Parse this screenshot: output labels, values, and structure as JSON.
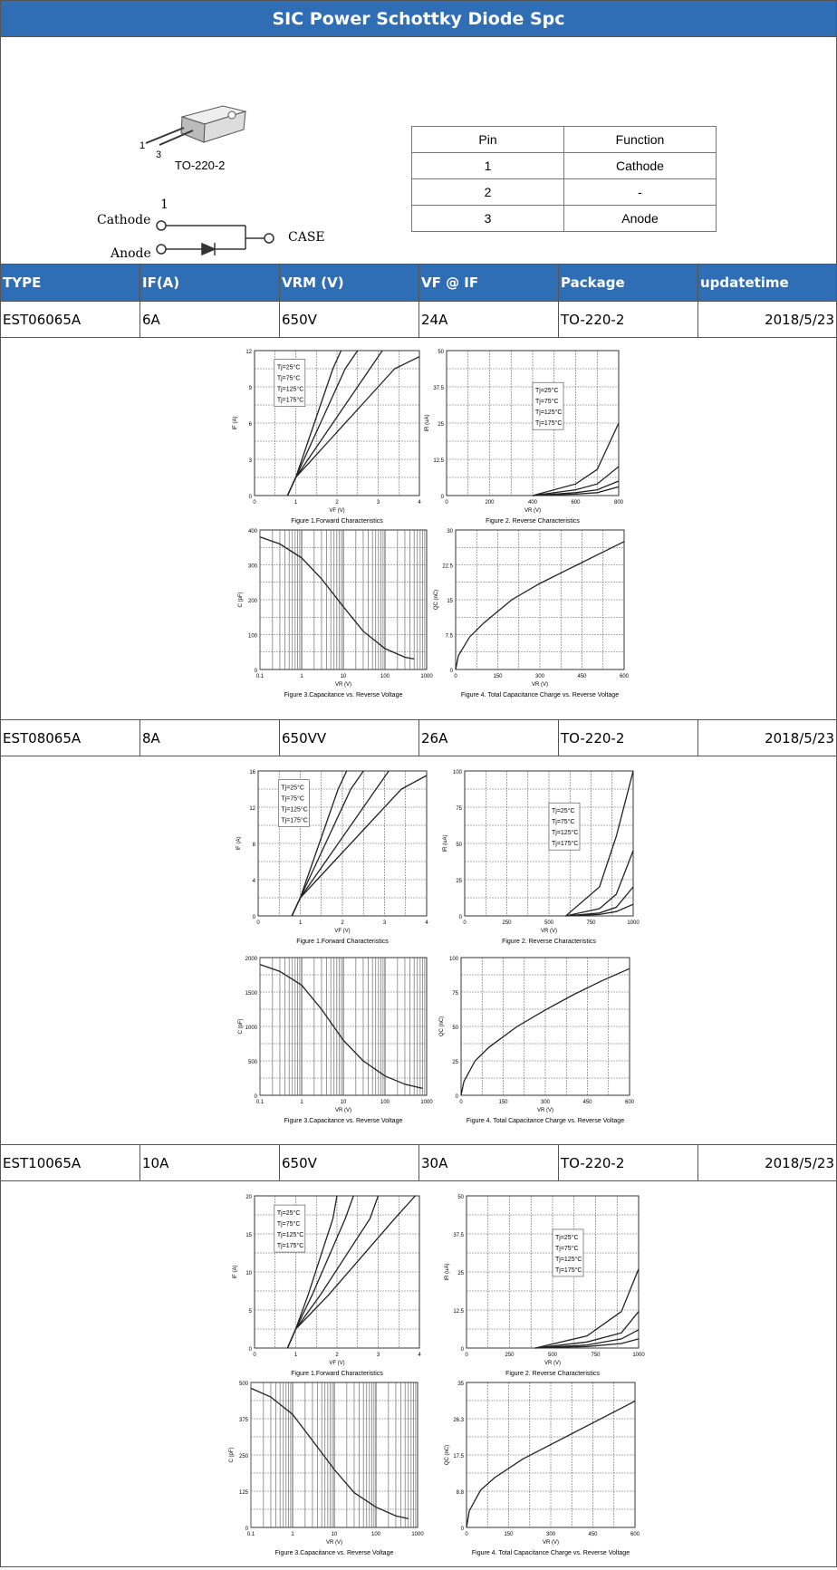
{
  "title": "SIC Power Schottky Diode Spc",
  "package_diagram": {
    "pin_left": "1",
    "pin_right": "3",
    "package_name": "TO-220-2",
    "cathode_label": "Cathode",
    "anode_label": "Anode",
    "case_label": "CASE",
    "cathode_pin": "1",
    "anode_pin": "3"
  },
  "pin_table": {
    "headers": [
      "Pin",
      "Function"
    ],
    "rows": [
      [
        "1",
        "Cathode"
      ],
      [
        "2",
        "-"
      ],
      [
        "3",
        "Anode"
      ]
    ]
  },
  "table": {
    "headers": [
      "TYPE",
      "IF(A)",
      "VRM  (V)",
      "VF @ IF",
      "Package",
      "updatetime"
    ],
    "rows": [
      [
        "EST06065A",
        "6A",
        "650V",
        "24A",
        "TO-220-2",
        "2018/5/23"
      ],
      [
        "EST08065A",
        "8A",
        "650VV",
        "26A",
        "TO-220-2",
        "2018/5/23"
      ],
      [
        "EST10065A",
        "10A",
        "650V",
        "30A",
        "TO-220-2",
        "2018/5/23"
      ]
    ]
  },
  "figure_captions": {
    "fig1": "Figure 1.Forward Characteristics",
    "fig2": "Figure 2. Reverse Characteristics",
    "fig3": "Figure 3.Capacitance vs. Reverse Voltage",
    "fig4": "Figure 4. Total Capacitance Charge vs. Reverse Voltage"
  },
  "temps": [
    "Tj=25°C",
    "Tj=75°C",
    "Tj=125°C",
    "Tj=175°C"
  ],
  "chart_data": [
    {
      "type": "line",
      "device": "EST06065A",
      "title": "Figure 1.Forward Characteristics",
      "xlabel": "VF (V)",
      "ylabel": "IF (A)",
      "xlim": [
        0,
        4
      ],
      "ylim": [
        0,
        12
      ],
      "series": [
        {
          "name": "Tj=25°C",
          "x": [
            0.8,
            1.0,
            1.3,
            1.6,
            1.9,
            2.1
          ],
          "y": [
            0,
            1.5,
            4.5,
            7.5,
            10.5,
            12
          ]
        },
        {
          "name": "Tj=75°C",
          "x": [
            0.8,
            1.0,
            1.4,
            1.8,
            2.2,
            2.5
          ],
          "y": [
            0,
            1.5,
            4.5,
            7.5,
            10.5,
            12
          ]
        },
        {
          "name": "Tj=125°C",
          "x": [
            0.8,
            1.0,
            1.6,
            2.2,
            2.8,
            3.1
          ],
          "y": [
            0,
            1.5,
            4.5,
            7.5,
            10.5,
            12
          ]
        },
        {
          "name": "Tj=175°C",
          "x": [
            0.8,
            1.0,
            1.8,
            2.6,
            3.4,
            4.0
          ],
          "y": [
            0,
            1.5,
            4.5,
            7.5,
            10.5,
            11.5
          ]
        }
      ]
    },
    {
      "type": "line",
      "device": "EST06065A",
      "title": "Figure 2. Reverse Characteristics",
      "xlabel": "VR (V)",
      "ylabel": "IR (uA)",
      "xlim": [
        0,
        800
      ],
      "ylim": [
        0,
        50
      ],
      "series": [
        {
          "name": "Tj=25°C",
          "x": [
            400,
            600,
            700,
            800
          ],
          "y": [
            0,
            0.5,
            1,
            3
          ]
        },
        {
          "name": "Tj=75°C",
          "x": [
            400,
            600,
            700,
            800
          ],
          "y": [
            0,
            1,
            2,
            5
          ]
        },
        {
          "name": "Tj=125°C",
          "x": [
            400,
            600,
            700,
            800
          ],
          "y": [
            0,
            2,
            4,
            10
          ]
        },
        {
          "name": "Tj=175°C",
          "x": [
            400,
            600,
            700,
            800
          ],
          "y": [
            0,
            4,
            9,
            25
          ]
        }
      ]
    },
    {
      "type": "line",
      "device": "EST06065A",
      "title": "Figure 3.Capacitance vs. Reverse Voltage",
      "xlabel": "VR (V)",
      "ylabel": "C (pF)",
      "xscale": "log",
      "xlim": [
        0.1,
        1000
      ],
      "ylim": [
        0,
        400
      ],
      "series": [
        {
          "x": [
            0.1,
            0.3,
            1,
            3,
            10,
            30,
            100,
            300,
            500
          ],
          "y": [
            380,
            360,
            320,
            260,
            180,
            110,
            60,
            35,
            30
          ]
        }
      ]
    },
    {
      "type": "line",
      "device": "EST06065A",
      "title": "Figure 4. Total Capacitance Charge vs. Reverse Voltage",
      "xlabel": "VR (V)",
      "ylabel": "QC (nC)",
      "xlim": [
        0,
        600
      ],
      "ylim": [
        0,
        30
      ],
      "series": [
        {
          "x": [
            0,
            10,
            50,
            100,
            200,
            300,
            400,
            500,
            600
          ],
          "y": [
            0,
            3,
            7,
            10,
            15,
            18.5,
            21.5,
            24.5,
            27.5
          ]
        }
      ]
    },
    {
      "type": "line",
      "device": "EST08065A",
      "title": "Figure 1.Forward Characteristics",
      "xlabel": "VF (V)",
      "ylabel": "IF (A)",
      "xlim": [
        0,
        4
      ],
      "ylim": [
        0,
        16
      ],
      "series": [
        {
          "name": "Tj=25°C",
          "x": [
            0.8,
            1.0,
            1.3,
            1.6,
            1.9,
            2.1
          ],
          "y": [
            0,
            2,
            6,
            10,
            14,
            16
          ]
        },
        {
          "name": "Tj=75°C",
          "x": [
            0.8,
            1.0,
            1.4,
            1.8,
            2.2,
            2.5
          ],
          "y": [
            0,
            2,
            6,
            10,
            14,
            16
          ]
        },
        {
          "name": "Tj=125°C",
          "x": [
            0.8,
            1.0,
            1.6,
            2.2,
            2.8,
            3.1
          ],
          "y": [
            0,
            2,
            6,
            10,
            14,
            16
          ]
        },
        {
          "name": "Tj=175°C",
          "x": [
            0.8,
            1.0,
            1.8,
            2.6,
            3.4,
            4.0
          ],
          "y": [
            0,
            2,
            6,
            10,
            14,
            15.5
          ]
        }
      ]
    },
    {
      "type": "line",
      "device": "EST08065A",
      "title": "Figure 2. Reverse Characteristics",
      "xlabel": "VR (V)",
      "ylabel": "IR (uA)",
      "xlim": [
        0,
        1000
      ],
      "ylim": [
        0,
        100
      ],
      "series": [
        {
          "name": "Tj=25°C",
          "x": [
            600,
            800,
            900,
            1000
          ],
          "y": [
            0,
            1,
            3,
            8
          ]
        },
        {
          "name": "Tj=75°C",
          "x": [
            600,
            800,
            900,
            1000
          ],
          "y": [
            0,
            2,
            6,
            20
          ]
        },
        {
          "name": "Tj=125°C",
          "x": [
            600,
            800,
            900,
            1000
          ],
          "y": [
            0,
            5,
            15,
            45
          ]
        },
        {
          "name": "Tj=175°C",
          "x": [
            600,
            800,
            900,
            1000
          ],
          "y": [
            0,
            20,
            55,
            100
          ]
        }
      ]
    },
    {
      "type": "line",
      "device": "EST08065A",
      "title": "Figure 3.Capacitance vs. Reverse Voltage",
      "xlabel": "VR (V)",
      "ylabel": "C (pF)",
      "xscale": "log",
      "xlim": [
        0.1,
        1000
      ],
      "ylim": [
        0,
        2000
      ],
      "series": [
        {
          "x": [
            0.1,
            0.3,
            1,
            3,
            10,
            30,
            100,
            300,
            800
          ],
          "y": [
            1900,
            1800,
            1600,
            1250,
            800,
            500,
            280,
            160,
            100
          ]
        }
      ]
    },
    {
      "type": "line",
      "device": "EST08065A",
      "title": "Figure 4. Total Capacitance Charge vs. Reverse Voltage",
      "xlabel": "VR (V)",
      "ylabel": "QC (nC)",
      "xlim": [
        0,
        600
      ],
      "ylim": [
        0,
        100
      ],
      "series": [
        {
          "x": [
            0,
            10,
            50,
            100,
            200,
            300,
            400,
            500,
            600
          ],
          "y": [
            0,
            10,
            25,
            35,
            50,
            62,
            73,
            83,
            92
          ]
        }
      ]
    },
    {
      "type": "line",
      "device": "EST10065A",
      "title": "Figure 1.Forward Characteristics",
      "xlabel": "VF (V)",
      "ylabel": "IF (A)",
      "xlim": [
        0,
        4
      ],
      "ylim": [
        0,
        20
      ],
      "series": [
        {
          "name": "Tj=25°C",
          "x": [
            0.8,
            1.0,
            1.3,
            1.6,
            1.9,
            2.0
          ],
          "y": [
            0,
            2.5,
            7,
            12,
            17,
            20
          ]
        },
        {
          "name": "Tj=75°C",
          "x": [
            0.8,
            1.0,
            1.4,
            1.8,
            2.2,
            2.4
          ],
          "y": [
            0,
            2.5,
            7,
            12,
            17,
            20
          ]
        },
        {
          "name": "Tj=125°C",
          "x": [
            0.8,
            1.0,
            1.6,
            2.2,
            2.8,
            3.0
          ],
          "y": [
            0,
            2.5,
            7,
            12,
            17,
            20
          ]
        },
        {
          "name": "Tj=175°C",
          "x": [
            0.8,
            1.0,
            1.8,
            2.6,
            3.4,
            3.9
          ],
          "y": [
            0,
            2.5,
            7,
            12,
            17,
            20
          ]
        }
      ]
    },
    {
      "type": "line",
      "device": "EST10065A",
      "title": "Figure 2. Reverse Characteristics",
      "xlabel": "VR (V)",
      "ylabel": "IR (uA)",
      "xlim": [
        0,
        1000
      ],
      "ylim": [
        0,
        50
      ],
      "series": [
        {
          "name": "Tj=25°C",
          "x": [
            400,
            700,
            900,
            1000
          ],
          "y": [
            0,
            0.5,
            1.5,
            3
          ]
        },
        {
          "name": "Tj=75°C",
          "x": [
            400,
            700,
            900,
            1000
          ],
          "y": [
            0,
            1,
            3,
            6
          ]
        },
        {
          "name": "Tj=125°C",
          "x": [
            400,
            700,
            900,
            1000
          ],
          "y": [
            0,
            2,
            5,
            12
          ]
        },
        {
          "name": "Tj=175°C",
          "x": [
            400,
            700,
            900,
            1000
          ],
          "y": [
            0,
            4,
            12,
            26
          ]
        }
      ]
    },
    {
      "type": "line",
      "device": "EST10065A",
      "title": "Figure 3.Capacitance vs. Reverse Voltage",
      "xlabel": "VR (V)",
      "ylabel": "C (pF)",
      "xscale": "log",
      "xlim": [
        0.1,
        1000
      ],
      "ylim": [
        0,
        500
      ],
      "series": [
        {
          "x": [
            0.1,
            0.3,
            1,
            3,
            10,
            30,
            100,
            300,
            600
          ],
          "y": [
            480,
            450,
            390,
            300,
            200,
            120,
            70,
            40,
            30
          ]
        }
      ]
    },
    {
      "type": "line",
      "device": "EST10065A",
      "title": "Figure 4. Total Capacitance Charge vs. Reverse Voltage",
      "xlabel": "VR (V)",
      "ylabel": "QC (nC)",
      "xlim": [
        0,
        600
      ],
      "ylim": [
        0,
        35
      ],
      "series": [
        {
          "x": [
            0,
            10,
            50,
            100,
            200,
            300,
            400,
            500,
            600
          ],
          "y": [
            0,
            4,
            9,
            12,
            16.5,
            20,
            23.5,
            27,
            30.5
          ]
        }
      ]
    }
  ]
}
